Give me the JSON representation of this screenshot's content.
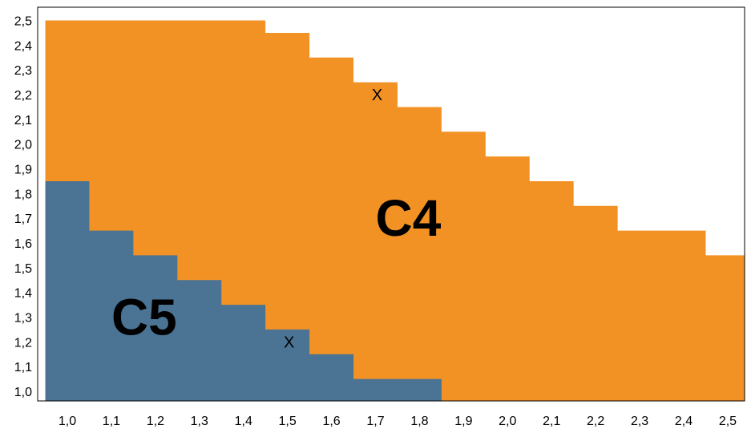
{
  "chart_data": {
    "type": "heatmap",
    "title": "",
    "xlabel": "",
    "ylabel": "",
    "xlim": [
      1.0,
      2.5
    ],
    "ylim": [
      1.0,
      2.5
    ],
    "x_ticks": [
      "1,0",
      "1,1",
      "1,2",
      "1,3",
      "1,4",
      "1,5",
      "1,6",
      "1,7",
      "1,8",
      "1,9",
      "2,0",
      "2,1",
      "2,2",
      "2,3",
      "2,4",
      "2,5"
    ],
    "y_ticks": [
      "1,0",
      "1,1",
      "1,2",
      "1,3",
      "1,4",
      "1,5",
      "1,6",
      "1,7",
      "1,8",
      "1,9",
      "2,0",
      "2,1",
      "2,2",
      "2,3",
      "2,4",
      "2,5"
    ],
    "grid": false,
    "colors": {
      "C5": "#4a7394",
      "C4": "#f39224",
      "empty": "#ffffff"
    },
    "regions": [
      {
        "label": "C5",
        "label_position": {
          "x": 1.2,
          "y": 1.3
        },
        "boundary_comment_free_steps": [
          {
            "x_from": 1.0,
            "x_to": 1.1,
            "y_top": 1.85
          },
          {
            "x_from": 1.1,
            "x_to": 1.2,
            "y_top": 1.65
          },
          {
            "x_from": 1.2,
            "x_to": 1.3,
            "y_top": 1.55
          },
          {
            "x_from": 1.3,
            "x_to": 1.4,
            "y_top": 1.45
          },
          {
            "x_from": 1.4,
            "x_to": 1.5,
            "y_top": 1.35
          },
          {
            "x_from": 1.5,
            "x_to": 1.6,
            "y_top": 1.25
          },
          {
            "x_from": 1.6,
            "x_to": 1.7,
            "y_top": 1.15
          },
          {
            "x_from": 1.7,
            "x_to": 1.9,
            "y_top": 1.05
          }
        ]
      },
      {
        "label": "C4",
        "label_position": {
          "x": 1.8,
          "y": 1.7
        },
        "boundary_comment_free_steps": [
          {
            "x_from": 1.0,
            "x_to": 1.5,
            "y_top": 2.5
          },
          {
            "x_from": 1.5,
            "x_to": 1.6,
            "y_top": 2.45
          },
          {
            "x_from": 1.6,
            "x_to": 1.7,
            "y_top": 2.35
          },
          {
            "x_from": 1.7,
            "x_to": 1.8,
            "y_top": 2.25
          },
          {
            "x_from": 1.8,
            "x_to": 1.9,
            "y_top": 2.15
          },
          {
            "x_from": 1.9,
            "x_to": 2.0,
            "y_top": 2.05
          },
          {
            "x_from": 2.0,
            "x_to": 2.1,
            "y_top": 1.95
          },
          {
            "x_from": 2.1,
            "x_to": 2.2,
            "y_top": 1.85
          },
          {
            "x_from": 2.2,
            "x_to": 2.3,
            "y_top": 1.75
          },
          {
            "x_from": 2.3,
            "x_to": 2.5,
            "y_top": 1.65
          },
          {
            "x_from": 2.5,
            "x_to": 2.6,
            "y_top": 1.55
          }
        ]
      }
    ],
    "markers": [
      {
        "text": "X",
        "x": 1.7,
        "y": 2.2
      },
      {
        "text": "X",
        "x": 1.5,
        "y": 1.2
      }
    ]
  }
}
